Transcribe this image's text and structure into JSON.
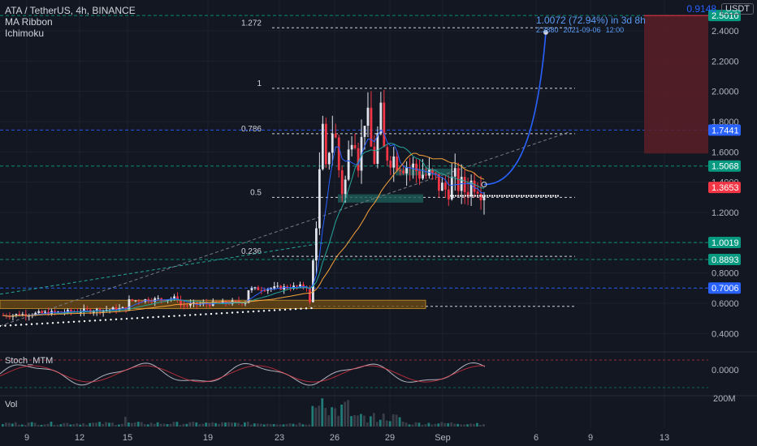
{
  "header": {
    "symbol": "ATA / TetherUS, 4h, BINANCE",
    "indicators": [
      "MA Ribbon",
      "Ichimoku"
    ],
    "top_price": "0.9148",
    "currency": "USDT"
  },
  "projection": {
    "label": "1.0072 (72.94%) in 3d 8h",
    "target": "2.3880",
    "date": "2021-09-06",
    "time": "12:00"
  },
  "fib_levels": [
    {
      "label": "1.272",
      "price": 2.42
    },
    {
      "label": "1",
      "price": 2.02
    },
    {
      "label": "0.786",
      "price": 1.72
    },
    {
      "label": "0.5",
      "price": 1.3
    },
    {
      "label": "0.236",
      "price": 0.91
    }
  ],
  "price_tags": [
    {
      "value": "2.5010",
      "price": 2.501,
      "color": "#089981"
    },
    {
      "value": "1.7441",
      "price": 1.7441,
      "color": "#2962ff"
    },
    {
      "value": "1.5068",
      "price": 1.5068,
      "color": "#089981"
    },
    {
      "value": "1.3653",
      "price": 1.3653,
      "color": "#f23645"
    },
    {
      "value": "1.0019",
      "price": 1.0019,
      "color": "#089981"
    },
    {
      "value": "0.8893",
      "price": 0.8893,
      "color": "#089981"
    },
    {
      "value": "0.7006",
      "price": 0.7006,
      "color": "#2962ff"
    }
  ],
  "lower_panes": {
    "stoch_label": "Stoch_MTM",
    "stoch_axis": "0.0000",
    "vol_label": "Vol",
    "vol_axis": "200M"
  },
  "chart_data": {
    "type": "candlestick",
    "ylim": [
      0.3,
      2.55
    ],
    "y_ticks": [
      "2.4000",
      "2.2000",
      "2.0000",
      "1.8000",
      "1.6000",
      "1.4000",
      "1.2000",
      "1.0000",
      "0.8000",
      "0.6000",
      "0.4000"
    ],
    "y_tick_values": [
      2.4,
      2.2,
      2.0,
      1.8,
      1.6,
      1.4,
      1.2,
      1.0,
      0.8,
      0.6,
      0.4
    ],
    "x_ticks": [
      "9",
      "12",
      "15",
      "19",
      "23",
      "26",
      "29",
      "Sep",
      "6",
      "9",
      "13"
    ],
    "candles_visible": 150,
    "last_price": 1.3653
  }
}
